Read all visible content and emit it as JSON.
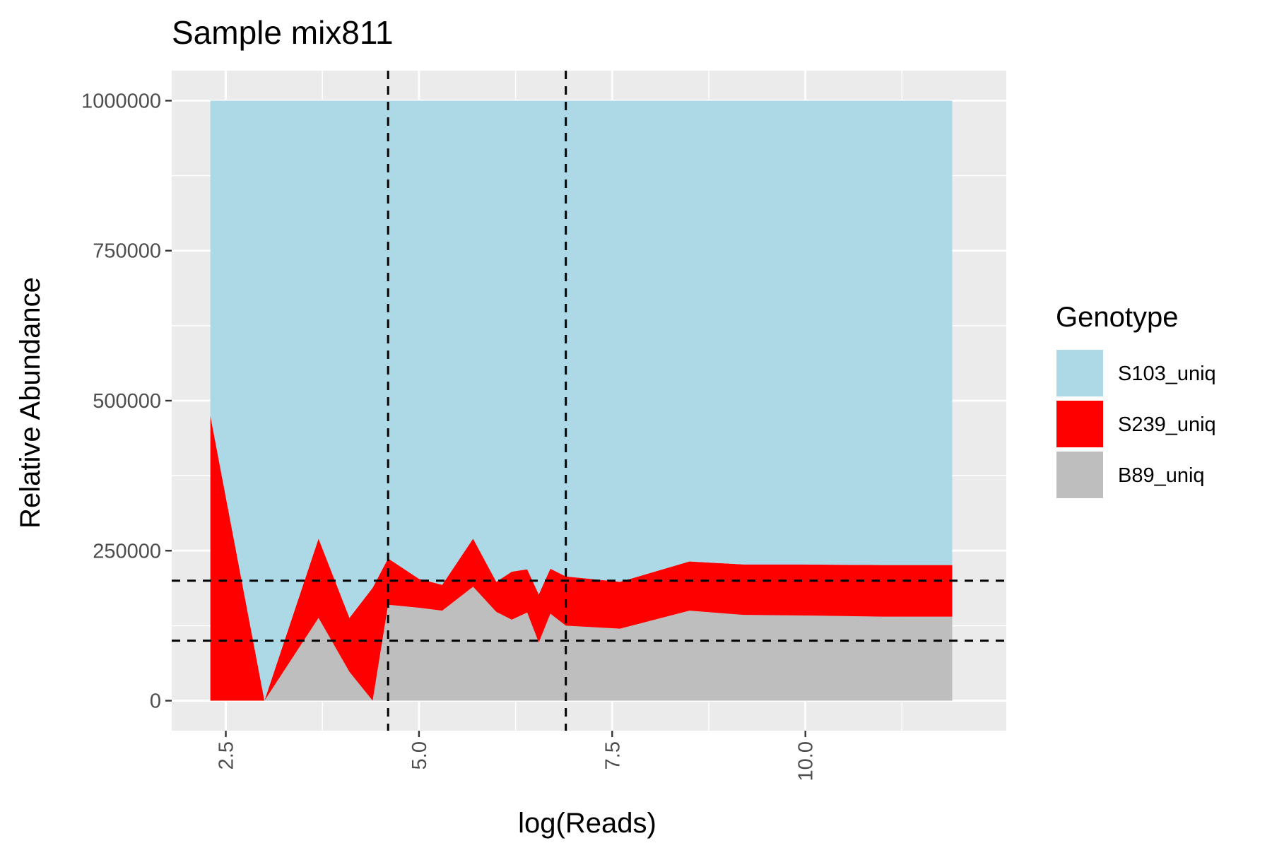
{
  "chart_data": {
    "type": "area",
    "stacked": true,
    "title": "Sample mix811",
    "xlabel": "log(Reads)",
    "ylabel": "Relative Abundance",
    "xlim": [
      1.8,
      12.6
    ],
    "ylim": [
      -50000,
      1050000
    ],
    "x_ticks": [
      2.5,
      5.0,
      7.5,
      10.0
    ],
    "x_tick_labels": [
      "2.5",
      "5.0",
      "7.5",
      "10.0"
    ],
    "y_ticks": [
      0,
      250000,
      500000,
      750000,
      1000000
    ],
    "y_tick_labels": [
      "0",
      "250000",
      "500000",
      "750000",
      "1000000"
    ],
    "grid": true,
    "legend": {
      "title": "Genotype",
      "placement": "right",
      "entries": [
        "S103_uniq",
        "S239_uniq",
        "B89_uniq"
      ]
    },
    "colors": {
      "S103_uniq": "#add8e6",
      "S239_uniq": "#ff0000",
      "B89_uniq": "#bebebe",
      "panel": "#ebebeb",
      "grid": "#ffffff",
      "reference": "#000000"
    },
    "x": [
      2.3,
      3.0,
      3.7,
      4.1,
      4.4,
      4.6,
      5.0,
      5.3,
      5.7,
      6.0,
      6.2,
      6.4,
      6.55,
      6.7,
      6.9,
      7.6,
      8.5,
      9.2,
      10.0,
      11.0,
      11.9
    ],
    "series": [
      {
        "name": "B89_uniq",
        "values": [
          0,
          0,
          138000,
          48000,
          0,
          160000,
          155000,
          150000,
          190000,
          148000,
          135000,
          147000,
          97000,
          145000,
          125000,
          120000,
          150000,
          143000,
          142000,
          140000,
          140000
        ]
      },
      {
        "name": "S239_uniq",
        "values": [
          475000,
          0,
          132000,
          90000,
          188000,
          77000,
          48000,
          43000,
          80000,
          50000,
          80000,
          72000,
          80000,
          75000,
          82000,
          78000,
          82000,
          84000,
          85000,
          86000,
          86000
        ]
      },
      {
        "name": "S103_uniq",
        "values": [
          525000,
          1000000,
          730000,
          862000,
          812000,
          763000,
          797000,
          807000,
          730000,
          802000,
          785000,
          781000,
          823000,
          780000,
          793000,
          802000,
          768000,
          773000,
          773000,
          774000,
          774000
        ]
      }
    ],
    "reference_lines": {
      "vertical": [
        4.6,
        6.9
      ],
      "horizontal": [
        100000,
        200000
      ],
      "style": "dashed"
    }
  }
}
